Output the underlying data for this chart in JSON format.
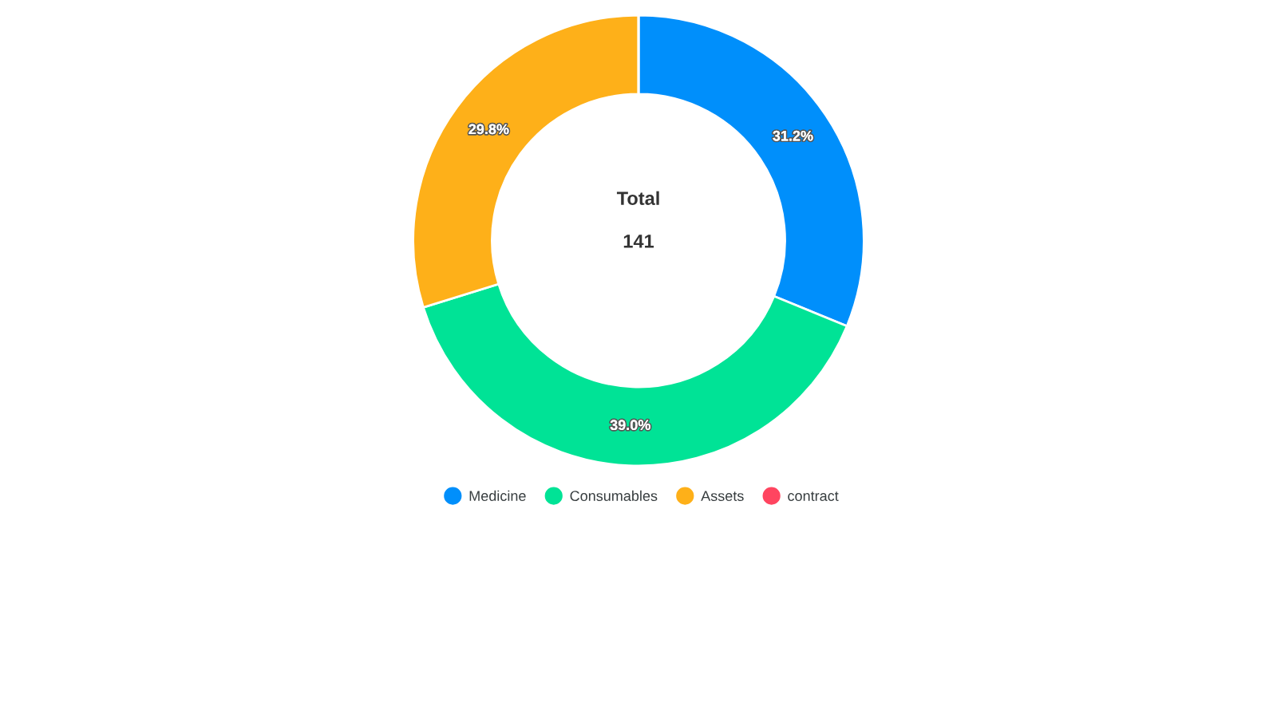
{
  "chart_data": {
    "type": "donut",
    "categories": [
      "Medicine",
      "Consumables",
      "Assets",
      "contract"
    ],
    "values": [
      31.2,
      39.0,
      29.8,
      0
    ],
    "colors": [
      "#008ffb",
      "#00e396",
      "#feb019",
      "#ff4560"
    ],
    "value_labels": [
      "31.2%",
      "39.0%",
      "29.8%",
      null
    ],
    "annotations": [
      "Total",
      "141"
    ],
    "legend": "bottom"
  }
}
